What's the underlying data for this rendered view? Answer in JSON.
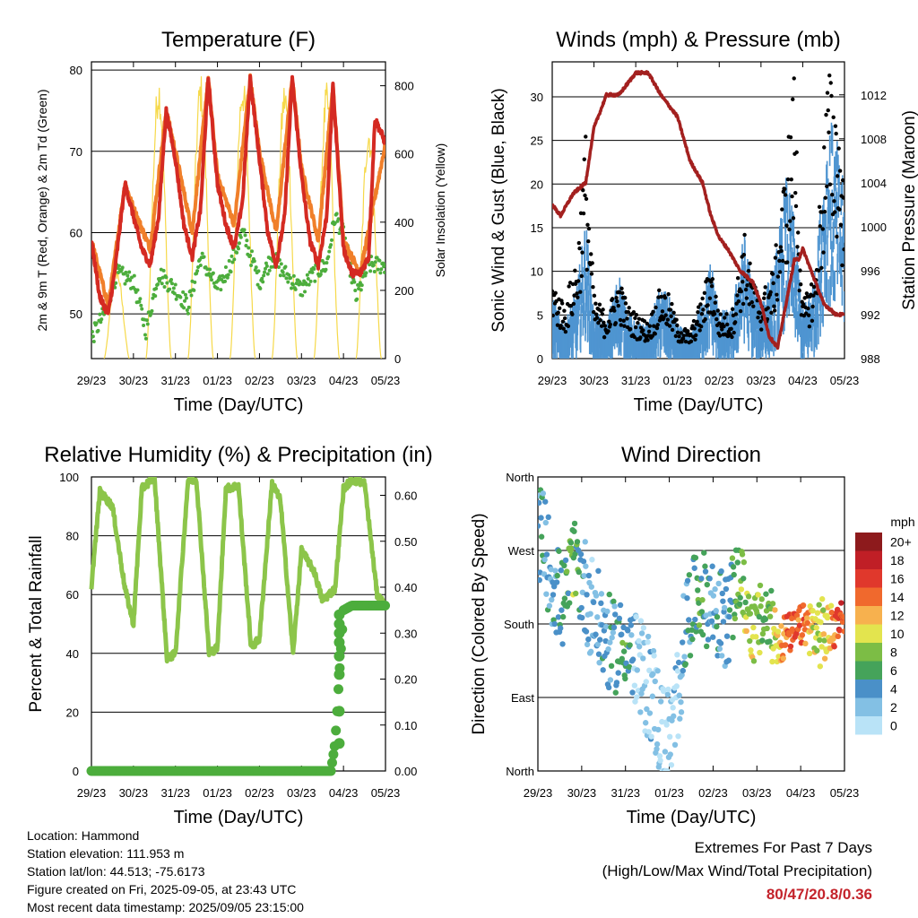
{
  "x_ticks": [
    "29/23",
    "30/23",
    "31/23",
    "01/23",
    "02/23",
    "03/23",
    "04/23",
    "05/23"
  ],
  "panels": {
    "temperature": {
      "title": "Temperature (F)",
      "xlabel": "Time (Day/UTC)",
      "ylabel_left": "2m & 9m T (Red, Orange) & 2m Td (Green)",
      "ylabel_right": "Solar Insolation (Yellow)",
      "yticks_left": [
        "50",
        "60",
        "70",
        "80"
      ],
      "yticks_right": [
        "0",
        "200",
        "400",
        "600",
        "800"
      ]
    },
    "winds": {
      "title": "Winds (mph) & Pressure (mb)",
      "xlabel": "Time (Day/UTC)",
      "ylabel_left": "Sonic Wind & Gust (Blue, Black)",
      "ylabel_right": "Station Pressure (Maroon)",
      "yticks_left": [
        "0",
        "5",
        "10",
        "15",
        "20",
        "25",
        "30"
      ],
      "yticks_right": [
        "988",
        "992",
        "996",
        "1000",
        "1004",
        "1008",
        "1012"
      ]
    },
    "humidity": {
      "title": "Relative Humidity (%) & Precipitation (in)",
      "xlabel": "Time (Day/UTC)",
      "ylabel_left": "Percent & Total Rainfall",
      "yticks_left": [
        "0",
        "20",
        "40",
        "60",
        "80",
        "100"
      ],
      "yticks_right": [
        "0.00",
        "0.10",
        "0.20",
        "0.30",
        "0.40",
        "0.50",
        "0.60"
      ]
    },
    "direction": {
      "title": "Wind Direction",
      "xlabel": "Time (Day/UTC)",
      "ylabel_left": "Direction (Colored By Speed)",
      "yticks_left": [
        "North",
        "East",
        "South",
        "West",
        "North"
      ],
      "legend_title": "mph",
      "legend_labels": [
        "0",
        "2",
        "4",
        "6",
        "8",
        "10",
        "12",
        "14",
        "16",
        "18",
        "20+"
      ],
      "legend_colors": [
        "#b9e3f7",
        "#83c0e4",
        "#4a90c8",
        "#45a35a",
        "#7cbd45",
        "#e3e44e",
        "#f7b14e",
        "#f0692d",
        "#e0382c",
        "#c01f26",
        "#8d1a1c"
      ]
    }
  },
  "info": {
    "location": "Location: Hammond",
    "elevation": "Station elevation: 111.953 m",
    "latlon": "Station lat/lon: 44.513; -75.6173",
    "created": "Figure created on Fri, 2025-09-05, at 23:43 UTC",
    "recent": "Most recent data timestamp: 2025/09/05 23:15:00"
  },
  "extremes": {
    "title": "Extremes For Past 7 Days",
    "subtitle": "(High/Low/Max Wind/Total Precipitation)",
    "values": "80/47/20.8/0.36"
  },
  "colors": {
    "temp2m": "#d42a22",
    "temp9m": "#f07f2a",
    "dewpoint": "#4cad3c",
    "solar": "#f6d94a",
    "wind": "#4f95d1",
    "gust": "#000000",
    "pressure": "#a3201f",
    "rh": "#8cc54a",
    "rain": "#4cad3c"
  },
  "chart_data": [
    {
      "type": "line",
      "title": "Temperature (F)",
      "x": [
        "29/23",
        "30/23",
        "31/23",
        "01/23",
        "02/23",
        "03/23",
        "04/23",
        "05/23"
      ],
      "xlabel": "Time (Day/UTC)",
      "ylabel": "2m & 9m T (Red, Orange) & 2m Td (Green)",
      "ylim": [
        44.5,
        81
      ],
      "y2label": "Solar Insolation (Yellow)",
      "y2lim": [
        0,
        870
      ],
      "series": [
        {
          "name": "2m T (Red)",
          "x": [
            0,
            0.2,
            0.4,
            0.55,
            0.8,
            1.0,
            1.2,
            1.4,
            1.6,
            1.78,
            2.0,
            2.2,
            2.4,
            2.6,
            2.78,
            3.0,
            3.2,
            3.4,
            3.6,
            3.78,
            4.0,
            4.2,
            4.4,
            4.6,
            4.78,
            5.0,
            5.2,
            5.4,
            5.6,
            5.75,
            6.0,
            6.2,
            6.4,
            6.6,
            6.75,
            7.0
          ],
          "values": [
            59,
            52,
            50,
            55,
            66,
            62,
            58,
            56,
            62,
            75,
            69,
            61,
            57,
            63,
            79,
            66,
            61,
            58,
            64,
            79,
            69,
            60,
            56,
            62,
            79,
            67,
            59,
            56,
            62,
            78,
            58,
            55,
            55,
            57,
            74,
            71
          ]
        },
        {
          "name": "9m T (Orange)",
          "x": [
            0,
            0.4,
            0.8,
            1.0,
            1.4,
            1.78,
            2.0,
            2.4,
            2.78,
            3.0,
            3.4,
            3.78,
            4.0,
            4.4,
            4.78,
            5.0,
            5.4,
            5.75,
            6.0,
            6.4,
            7.0
          ],
          "values": [
            59,
            51,
            66,
            63,
            58,
            75,
            70,
            60,
            79,
            67,
            61,
            79,
            70,
            60,
            79,
            68,
            59,
            78,
            59,
            55,
            71
          ]
        },
        {
          "name": "2m Td (Green)",
          "x": [
            0,
            0.3,
            0.6,
            1.0,
            1.3,
            1.6,
            2.0,
            2.3,
            2.6,
            3.0,
            3.3,
            3.6,
            4.0,
            4.3,
            4.6,
            5.0,
            5.3,
            5.6,
            5.8,
            6.0,
            6.3,
            6.6,
            7.0
          ],
          "values": [
            47,
            50,
            55,
            54,
            48,
            55,
            53,
            51,
            57,
            53,
            56,
            60,
            54,
            57,
            55,
            53,
            55,
            56,
            62,
            60,
            52,
            56,
            56
          ]
        },
        {
          "name": "Solar Insolation (Yellow)",
          "axis": "right",
          "days": [
            0.6,
            1.6,
            2.6,
            3.6,
            4.6,
            5.6,
            6.6
          ],
          "peaks": [
            270,
            840,
            840,
            840,
            820,
            810,
            700
          ]
        }
      ]
    },
    {
      "type": "line",
      "title": "Winds (mph) & Pressure (mb)",
      "x": [
        "29/23",
        "30/23",
        "31/23",
        "01/23",
        "02/23",
        "03/23",
        "04/23",
        "05/23"
      ],
      "xlabel": "Time (Day/UTC)",
      "ylabel": "Sonic Wind & Gust (Blue, Black)",
      "ylim": [
        0,
        34
      ],
      "y2label": "Station Pressure (Maroon)",
      "y2lim": [
        988,
        1015
      ],
      "series": [
        {
          "name": "Sonic Wind (Blue)",
          "x": [
            0,
            0.3,
            0.6,
            0.8,
            1.0,
            1.3,
            1.6,
            1.8,
            2.0,
            2.3,
            2.6,
            2.8,
            3.0,
            3.3,
            3.6,
            3.8,
            4.0,
            4.3,
            4.6,
            4.8,
            5.0,
            5.3,
            5.6,
            5.8,
            6.0,
            6.3,
            6.6,
            6.8,
            7.0
          ],
          "values": [
            4,
            2,
            5,
            10,
            3,
            2,
            6,
            3,
            2,
            2,
            5,
            4,
            2,
            1,
            4,
            7,
            3,
            3,
            9,
            5,
            4,
            6,
            13,
            10,
            3,
            6,
            18,
            16,
            12
          ]
        },
        {
          "name": "Gust (Black)",
          "x": [
            0,
            0.3,
            0.6,
            0.8,
            1.0,
            1.3,
            1.6,
            1.8,
            2.0,
            2.3,
            2.6,
            2.8,
            3.0,
            3.3,
            3.6,
            3.8,
            4.0,
            4.3,
            4.6,
            4.8,
            5.0,
            5.3,
            5.6,
            5.8,
            6.0,
            6.3,
            6.6,
            6.8,
            7.0
          ],
          "values": [
            9,
            6,
            12,
            25,
            7,
            5,
            9,
            6,
            5,
            4,
            8,
            7,
            4,
            3,
            7,
            11,
            5,
            5,
            14,
            9,
            7,
            10,
            22,
            32,
            6,
            10,
            32,
            30,
            20
          ]
        },
        {
          "name": "Station Pressure (Maroon)",
          "axis": "right",
          "x": [
            0,
            0.2,
            0.5,
            0.8,
            1.0,
            1.3,
            1.6,
            2.0,
            2.3,
            2.6,
            2.8,
            3.0,
            3.3,
            3.6,
            3.8,
            4.0,
            4.2,
            4.5,
            4.8,
            5.0,
            5.2,
            5.4,
            5.6,
            5.8,
            5.9,
            6.0,
            6.2,
            6.5,
            6.8,
            7.0
          ],
          "values": [
            1002,
            1001,
            1003,
            1004,
            1009,
            1012,
            1012,
            1014,
            1014,
            1012,
            1011,
            1010,
            1006,
            1004,
            1001,
            999,
            998,
            996,
            995,
            993,
            990,
            989,
            993,
            997,
            997,
            998,
            996,
            993,
            992,
            992
          ]
        }
      ]
    },
    {
      "type": "line",
      "title": "Relative Humidity (%) & Precipitation (in)",
      "x": [
        "29/23",
        "30/23",
        "31/23",
        "01/23",
        "02/23",
        "03/23",
        "04/23",
        "05/23"
      ],
      "xlabel": "Time (Day/UTC)",
      "ylabel": "Percent & Total Rainfall",
      "ylim": [
        0,
        100
      ],
      "y2lim": [
        0,
        0.64
      ],
      "series": [
        {
          "name": "Relative Humidity",
          "x": [
            0,
            0.2,
            0.5,
            0.8,
            1.0,
            1.2,
            1.5,
            1.8,
            2.0,
            2.3,
            2.5,
            2.8,
            3.0,
            3.2,
            3.5,
            3.8,
            4.0,
            4.3,
            4.5,
            4.8,
            5.0,
            5.3,
            5.5,
            5.8,
            6.0,
            6.2,
            6.5,
            6.8,
            7.0
          ],
          "values": [
            63,
            95,
            90,
            62,
            50,
            96,
            100,
            38,
            40,
            99,
            99,
            40,
            42,
            96,
            97,
            42,
            45,
            98,
            92,
            40,
            75,
            68,
            58,
            62,
            96,
            99,
            98,
            60,
            56
          ]
        },
        {
          "name": "Total Precipitation",
          "axis": "right",
          "x": [
            0,
            5.7,
            5.8,
            5.85,
            5.9,
            5.95,
            6.0,
            6.2,
            7.0
          ],
          "values": [
            0,
            0,
            0.06,
            0.13,
            0.21,
            0.28,
            0.35,
            0.36,
            0.36
          ]
        }
      ]
    },
    {
      "type": "scatter",
      "title": "Wind Direction",
      "x": [
        "29/23",
        "30/23",
        "31/23",
        "01/23",
        "02/23",
        "03/23",
        "04/23",
        "05/23"
      ],
      "xlabel": "Time (Day/UTC)",
      "ylabel": "Direction (Colored By Speed)",
      "yticks": [
        "North",
        "East",
        "South",
        "West",
        "North"
      ],
      "ylim": [
        0,
        360
      ],
      "legend": "right",
      "series": [
        {
          "name": "Direction",
          "x": [
            0.1,
            0.3,
            0.6,
            0.8,
            1.1,
            1.4,
            1.7,
            2.0,
            2.3,
            2.6,
            2.9,
            3.1,
            3.4,
            3.7,
            4.0,
            4.3,
            4.6,
            4.9,
            5.2,
            5.5,
            5.8,
            6.1,
            6.4,
            6.7,
            6.9
          ],
          "values": [
            290,
            240,
            200,
            260,
            220,
            180,
            150,
            160,
            120,
            100,
            30,
            50,
            190,
            220,
            200,
            180,
            240,
            170,
            190,
            160,
            170,
            180,
            170,
            170,
            190
          ],
          "speeds": [
            4,
            3,
            5,
            8,
            2,
            3,
            4,
            6,
            1,
            2,
            0,
            1,
            4,
            6,
            3,
            4,
            8,
            10,
            6,
            12,
            15,
            14,
            8,
            12,
            16
          ]
        }
      ]
    }
  ]
}
